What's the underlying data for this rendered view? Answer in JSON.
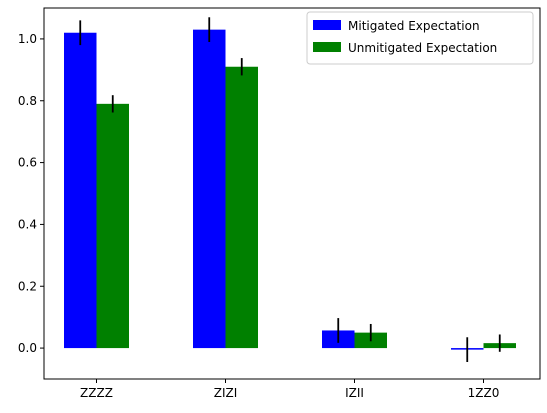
{
  "chart_data": {
    "type": "bar",
    "categories": [
      "ZZZZ",
      "ZIZI",
      "IZII",
      "1ZZ0"
    ],
    "series": [
      {
        "name": "Mitigated Expectation",
        "color": "#0000ff",
        "values": [
          1.02,
          1.03,
          0.057,
          -0.005
        ],
        "errors": [
          0.04,
          0.04,
          0.04,
          0.04
        ]
      },
      {
        "name": "Unmitigated Expectation",
        "color": "#008000",
        "values": [
          0.79,
          0.91,
          0.05,
          0.016
        ],
        "errors": [
          0.028,
          0.028,
          0.028,
          0.028
        ]
      }
    ],
    "yticks": [
      "0.0",
      "0.2",
      "0.4",
      "0.6",
      "0.8",
      "1.0"
    ],
    "ylim": [
      -0.1,
      1.1
    ],
    "xlabel": "",
    "ylabel": "",
    "title": "",
    "grid": false,
    "legend_position": "top-right"
  }
}
